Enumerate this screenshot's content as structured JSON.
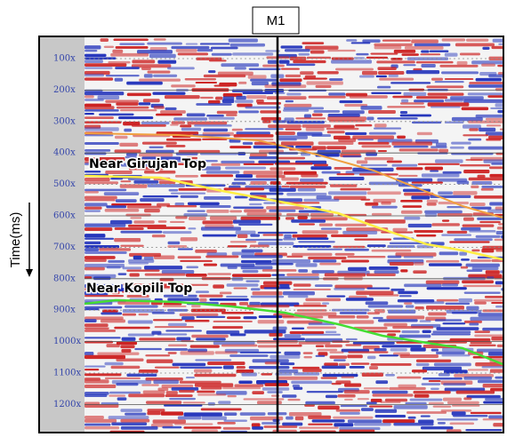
{
  "well": {
    "label": "M1"
  },
  "axis": {
    "label": "Time(ms)",
    "ticks": [
      "100x",
      "200x",
      "300x",
      "400x",
      "500x",
      "600x",
      "700x",
      "800x",
      "900x",
      "1000x",
      "1100x",
      "1200x"
    ]
  },
  "horizons": [
    {
      "label": "Near Girujan Top"
    },
    {
      "label": "Near Kopili Top"
    }
  ]
}
